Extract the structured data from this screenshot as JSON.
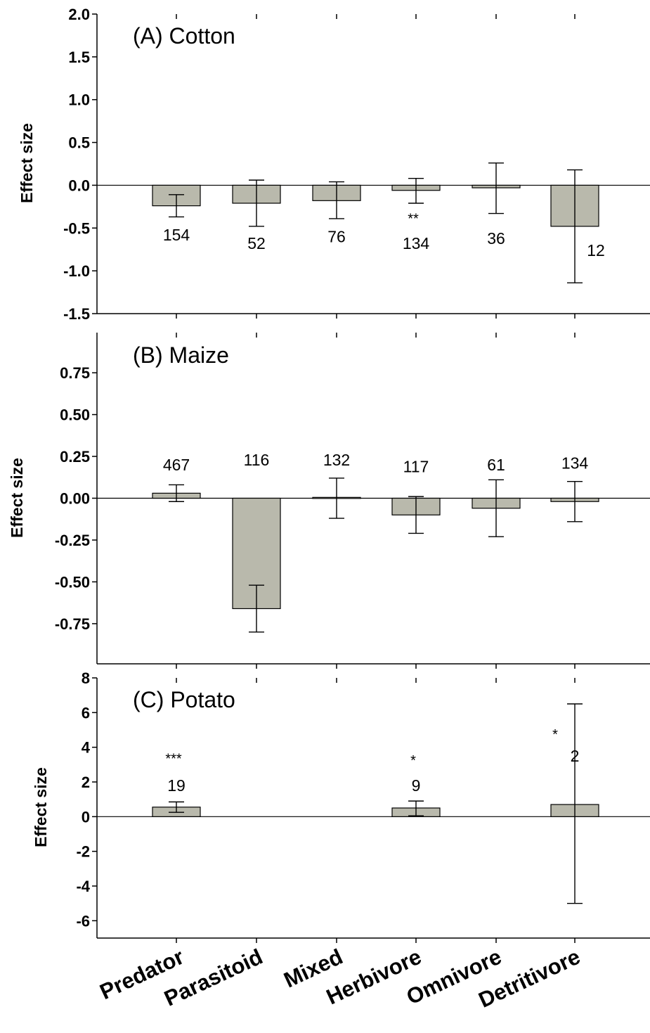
{
  "chart_data": [
    {
      "type": "bar",
      "title": "(A) Cotton",
      "ylabel": "Effect size",
      "categories": [
        "Predator",
        "Parasitoid",
        "Mixed",
        "Herbivore",
        "Omnivore",
        "Detritivore"
      ],
      "values": [
        -0.24,
        -0.21,
        -0.18,
        -0.06,
        -0.03,
        -0.48
      ],
      "error_low": [
        -0.37,
        -0.48,
        -0.39,
        -0.21,
        -0.33,
        -1.14
      ],
      "error_high": [
        -0.11,
        0.06,
        0.04,
        0.08,
        0.26,
        0.18
      ],
      "n": [
        "154",
        "52",
        "76",
        "134",
        "36",
        "12"
      ],
      "n_y": [
        -0.58,
        -0.68,
        -0.6,
        -0.68,
        -0.62,
        -0.76
      ],
      "sig": [
        "",
        "",
        "",
        "**",
        "",
        ""
      ],
      "sig_y": [
        null,
        null,
        null,
        -0.38,
        null,
        null
      ],
      "ylim": [
        -1.5,
        2.0
      ],
      "yticks": [
        -1.5,
        -1.0,
        -0.5,
        0.0,
        0.5,
        1.0,
        1.5,
        2.0
      ],
      "ytick_labels": [
        "-1.5",
        "-1.0",
        "-0.5",
        "0.0",
        "0.5",
        "1.0",
        "1.5",
        "2.0"
      ]
    },
    {
      "type": "bar",
      "title": "(B) Maize",
      "ylabel": "Effect size",
      "categories": [
        "Predator",
        "Parasitoid",
        "Mixed",
        "Herbivore",
        "Omnivore",
        "Detritivore"
      ],
      "values": [
        0.03,
        -0.66,
        0.005,
        -0.1,
        -0.06,
        -0.02
      ],
      "error_low": [
        -0.02,
        -0.8,
        -0.12,
        -0.21,
        -0.23,
        -0.14
      ],
      "error_high": [
        0.08,
        -0.52,
        0.12,
        0.01,
        0.11,
        0.1
      ],
      "n": [
        "467",
        "116",
        "132",
        "117",
        "61",
        "134"
      ],
      "n_y": [
        0.2,
        0.23,
        0.23,
        0.19,
        0.2,
        0.21
      ],
      "sig": [
        "",
        "",
        "",
        "",
        "",
        ""
      ],
      "sig_y": [
        null,
        null,
        null,
        null,
        null,
        null
      ],
      "ylim": [
        -0.99,
        0.99
      ],
      "yticks": [
        -0.75,
        -0.5,
        -0.25,
        0.0,
        0.25,
        0.5,
        0.75
      ],
      "ytick_labels": [
        "-0.75",
        "-0.50",
        "-0.25",
        "0.00",
        "0.25",
        "0.50",
        "0.75"
      ]
    },
    {
      "type": "bar",
      "title": "(C) Potato",
      "ylabel": "Effect size",
      "categories": [
        "Predator",
        "Parasitoid",
        "Mixed",
        "Herbivore",
        "Omnivore",
        "Detritivore"
      ],
      "values": [
        0.55,
        null,
        null,
        0.5,
        null,
        0.7
      ],
      "error_low": [
        0.25,
        null,
        null,
        0.05,
        null,
        -5.0
      ],
      "error_high": [
        0.85,
        null,
        null,
        0.9,
        null,
        6.5
      ],
      "n": [
        "19",
        "",
        "",
        "9",
        "",
        "2"
      ],
      "n_y": [
        1.8,
        null,
        null,
        1.8,
        null,
        3.5
      ],
      "sig": [
        "***",
        "",
        "",
        "*",
        "",
        "*"
      ],
      "sig_y": [
        3.4,
        null,
        null,
        3.3,
        null,
        4.8
      ],
      "ylim": [
        -7,
        8
      ],
      "yticks": [
        -6,
        -4,
        -2,
        0,
        2,
        4,
        6,
        8
      ],
      "ytick_labels": [
        "-6",
        "-4",
        "-2",
        "0",
        "2",
        "4",
        "6",
        "8"
      ]
    }
  ]
}
